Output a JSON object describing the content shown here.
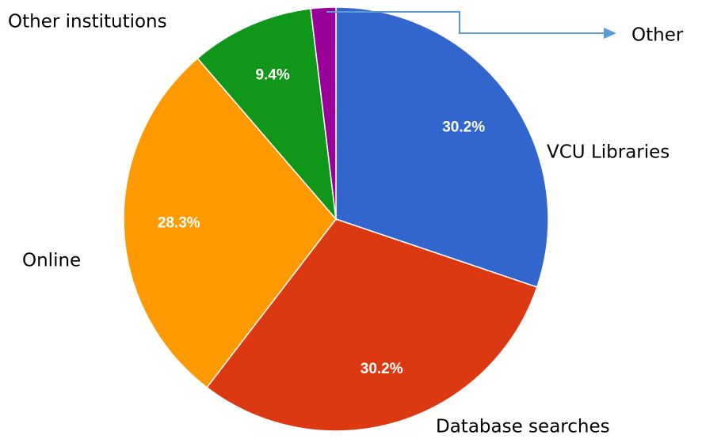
{
  "chart_data": {
    "type": "pie",
    "categories": [
      "VCU Libraries",
      "Database searches",
      "Online",
      "Other institutions",
      "Other"
    ],
    "values": [
      30.2,
      30.2,
      28.3,
      9.4,
      1.9
    ],
    "value_labels": [
      "30.2%",
      "30.2%",
      "28.3%",
      "9.4%",
      null
    ],
    "colors": [
      "#3366cc",
      "#dc3912",
      "#ff9900",
      "#109618",
      "#990099"
    ]
  }
}
